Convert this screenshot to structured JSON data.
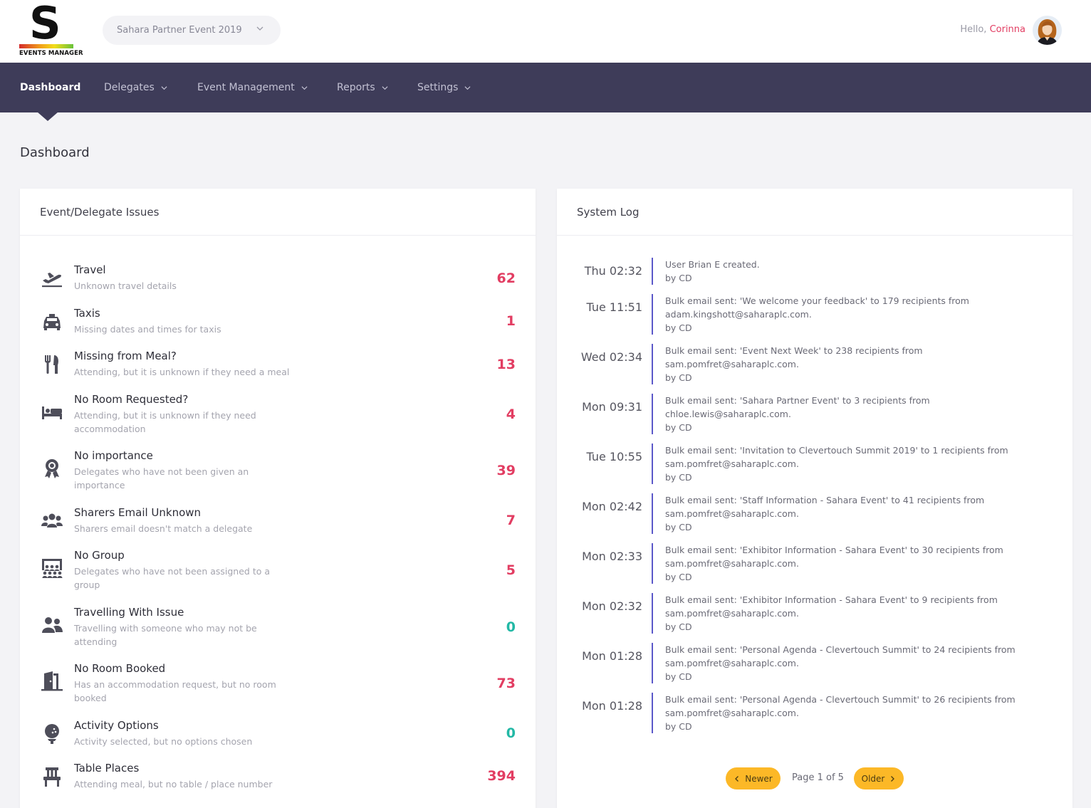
{
  "logo": {
    "letter": "S",
    "subtitle": "EVENTS MANAGER"
  },
  "event_selector": {
    "value": "Sahara Partner Event 2019",
    "icon": "chevron-down-icon"
  },
  "user": {
    "greeting": "Hello,",
    "name": "Corinna"
  },
  "nav": [
    {
      "label": "Dashboard",
      "active": true
    },
    {
      "label": "Delegates"
    },
    {
      "label": "Event Management"
    },
    {
      "label": "Reports"
    },
    {
      "label": "Settings"
    }
  ],
  "page_title": "Dashboard",
  "issues_card": {
    "title": "Event/Delegate Issues",
    "items": [
      {
        "icon": "plane-departure-icon",
        "title": "Travel",
        "desc": "Unknown travel details",
        "count": "62",
        "status": "red"
      },
      {
        "icon": "taxi-icon",
        "title": "Taxis",
        "desc": "Missing dates and times for taxis",
        "count": "1",
        "status": "red"
      },
      {
        "icon": "utensils-icon",
        "title": "Missing from Meal?",
        "desc": "Attending, but it is unknown if they need a meal",
        "count": "13",
        "status": "red"
      },
      {
        "icon": "bed-icon",
        "title": "No Room Requested?",
        "desc": "Attending, but it is unknown if they need accommodation",
        "count": "4",
        "status": "red"
      },
      {
        "icon": "award-icon",
        "title": "No importance",
        "desc": "Delegates who have not been given an importance",
        "count": "39",
        "status": "red"
      },
      {
        "icon": "users-icon",
        "title": "Sharers Email Unknown",
        "desc": "Sharers email doesn't match a delegate",
        "count": "7",
        "status": "red"
      },
      {
        "icon": "group-presentation-icon",
        "title": "No Group",
        "desc": "Delegates who have not been assigned to a group",
        "count": "5",
        "status": "red"
      },
      {
        "icon": "user-friends-icon",
        "title": "Travelling With Issue",
        "desc": "Travelling with someone who may not be attending",
        "count": "0",
        "status": "teal"
      },
      {
        "icon": "door-open-icon",
        "title": "No Room Booked",
        "desc": "Has an accommodation request, but no room booked",
        "count": "73",
        "status": "red"
      },
      {
        "icon": "golf-ball-icon",
        "title": "Activity Options",
        "desc": "Activity selected, but no options chosen",
        "count": "0",
        "status": "teal"
      },
      {
        "icon": "chair-icon",
        "title": "Table Places",
        "desc": "Attending meal, but no table / place number",
        "count": "394",
        "status": "red"
      }
    ]
  },
  "log_card": {
    "title": "System Log",
    "entries": [
      {
        "time": "Thu 02:32",
        "lines": [
          "User Brian E created.",
          "by CD"
        ]
      },
      {
        "time": "Tue 11:51",
        "lines": [
          "Bulk email sent: 'We welcome your feedback' to 179 recipients from",
          "adam.kingshott@saharaplc.com.",
          "by CD"
        ]
      },
      {
        "time": "Wed 02:34",
        "lines": [
          "Bulk email sent: 'Event Next Week' to 238 recipients from",
          "sam.pomfret@saharaplc.com.",
          "by CD"
        ]
      },
      {
        "time": "Mon 09:31",
        "lines": [
          "Bulk email sent: 'Sahara Partner Event' to 3 recipients from",
          "chloe.lewis@saharaplc.com.",
          "by CD"
        ]
      },
      {
        "time": "Tue 10:55",
        "lines": [
          "Bulk email sent: 'Invitation to Clevertouch Summit 2019' to 1 recipients from",
          "sam.pomfret@saharaplc.com.",
          "by CD"
        ]
      },
      {
        "time": "Mon 02:42",
        "lines": [
          "Bulk email sent: 'Staff Information - Sahara Event' to 41 recipients from",
          "sam.pomfret@saharaplc.com.",
          "by CD"
        ]
      },
      {
        "time": "Mon 02:33",
        "lines": [
          "Bulk email sent: 'Exhibitor Information - Sahara Event' to 30 recipients from",
          "sam.pomfret@saharaplc.com.",
          "by CD"
        ]
      },
      {
        "time": "Mon 02:32",
        "lines": [
          "Bulk email sent: 'Exhibitor Information - Sahara Event' to 9 recipients from",
          "sam.pomfret@saharaplc.com.",
          "by CD"
        ]
      },
      {
        "time": "Mon 01:28",
        "lines": [
          "Bulk email sent: 'Personal Agenda - Clevertouch Summit' to 24 recipients from",
          "sam.pomfret@saharaplc.com.",
          "by CD"
        ]
      },
      {
        "time": "Mon 01:28",
        "lines": [
          "Bulk email sent: 'Personal Agenda - Clevertouch Summit' to 26 recipients from",
          "sam.pomfret@saharaplc.com.",
          "by CD"
        ]
      }
    ],
    "pager": {
      "newer": "Newer",
      "info": "Page 1 of 5",
      "older": "Older"
    }
  },
  "colors": {
    "nav_bg": "#3e3c59",
    "count_red": "#e23d62",
    "count_teal": "#22b8a5",
    "log_bar": "#5b58c9",
    "pager_btn": "#fcb827",
    "user_name": "#e23d62"
  }
}
